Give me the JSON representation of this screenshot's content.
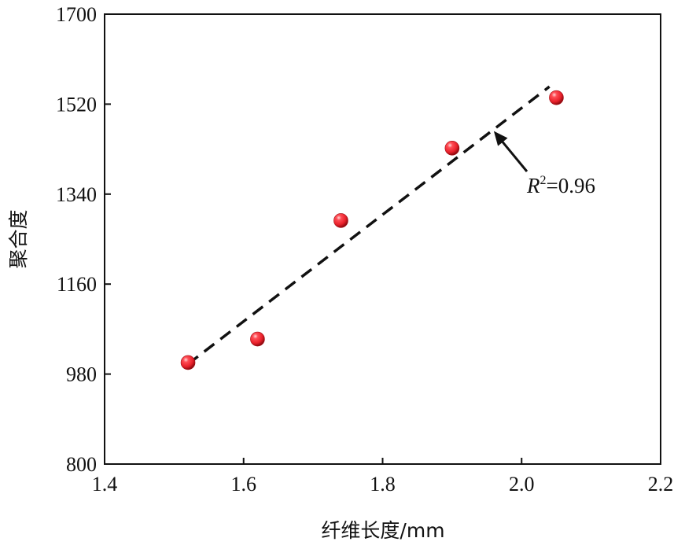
{
  "chart_data": {
    "type": "scatter",
    "xlabel": "纤维长度/mm",
    "ylabel": "聚合度",
    "xlim": [
      1.4,
      2.2
    ],
    "ylim": [
      800,
      1700
    ],
    "xticks": [
      "1.4",
      "1.6",
      "1.8",
      "2.0",
      "2.2"
    ],
    "yticks": [
      "800",
      "980",
      "1160",
      "1340",
      "1520",
      "1700"
    ],
    "grid": false,
    "series": [
      {
        "x": [
          1.52,
          1.62,
          1.74,
          1.9,
          2.05
        ],
        "y": [
          1003,
          1050,
          1287,
          1432,
          1533
        ],
        "marker_color": "#e8202a"
      }
    ],
    "fit_line": {
      "x": [
        1.52,
        2.04
      ],
      "y": [
        1000,
        1555
      ],
      "style": "dashed"
    },
    "annotation": {
      "symbol": "R",
      "superscript": "2",
      "text": "=0.96",
      "points_to": [
        1.96,
        1485
      ]
    }
  }
}
